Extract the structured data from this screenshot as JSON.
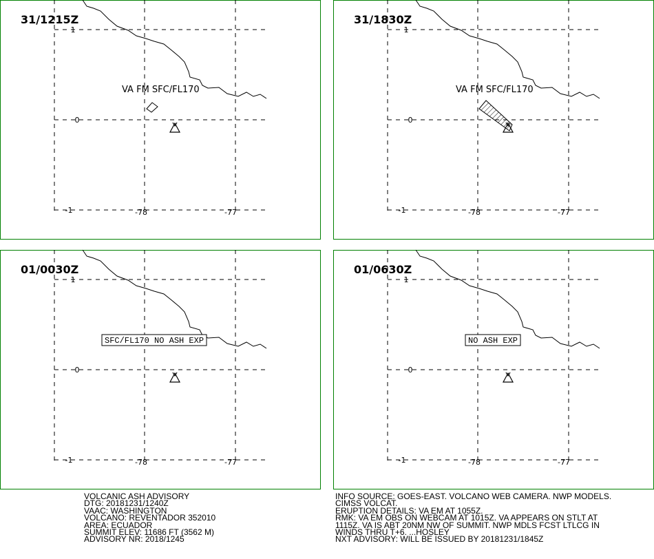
{
  "panels": [
    {
      "time": "31/1215Z",
      "annotation": "VA FM SFC/FL170"
    },
    {
      "time": "31/1830Z",
      "annotation": "VA FM SFC/FL170"
    },
    {
      "time": "01/0030Z",
      "annotation": "SFC/FL170 NO ASH EXP"
    },
    {
      "time": "01/0630Z",
      "annotation": "NO ASH EXP"
    }
  ],
  "lat_labels": [
    "1",
    "0",
    "-1"
  ],
  "lon_labels": [
    "-78",
    "-77"
  ],
  "advisory_left": [
    "VOLCANIC ASH ADVISORY",
    "DTG: 20181231/1240Z",
    "VAAC: WASHINGTON",
    "VOLCANO: REVENTADOR 352010",
    "AREA: ECUADOR",
    "SUMMIT ELEV: 11686 FT (3562 M)",
    "ADVISORY NR: 2018/1245"
  ],
  "advisory_right": [
    "INFO SOURCE: GOES-EAST. VOLCANO WEB CAMERA. NWP MODELS.",
    "CIMSS VOLCAT.",
    "ERUPTION DETAILS: VA EM AT 1055Z.",
    "RMK: VA EM OBS ON WEBCAM AT 1015Z. VA APPEARS ON STLT AT",
    "1115Z. VA IS ABT 20NM NW OF SUMMIT. NWP MDLS FCST LTLCG IN",
    "WINDS THRU T+6. ...HOSLEY",
    "NXT ADVISORY: WILL BE ISSUED BY 20181231/1845Z"
  ]
}
